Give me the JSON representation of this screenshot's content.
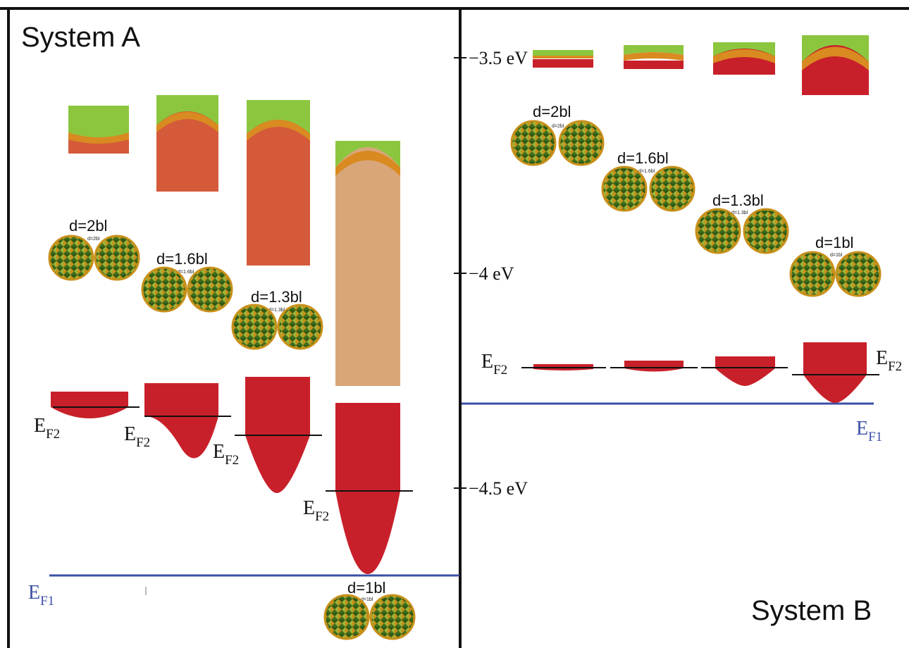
{
  "system_a": {
    "title": "System A",
    "panels": [
      {
        "d_label": "d=2bl",
        "inset_label": "d=2bl"
      },
      {
        "d_label": "d=1.6bl",
        "inset_label": "d=1.6bl"
      },
      {
        "d_label": "d=1.3bl",
        "inset_label": "d=1.3bl"
      },
      {
        "d_label": "d=1bl",
        "inset_label": "d=1bl"
      }
    ]
  },
  "system_b": {
    "title": "System B",
    "panels": [
      {
        "d_label": "d=2bl",
        "inset_label": "d=2bl"
      },
      {
        "d_label": "d=1.6bl",
        "inset_label": "d=1.6bl"
      },
      {
        "d_label": "d=1.3bl",
        "inset_label": "d=1.3bl"
      },
      {
        "d_label": "d=1bl",
        "inset_label": "d=1bl"
      }
    ]
  },
  "energy_axis": {
    "ticks": [
      "−3.5 eV",
      "−4 eV",
      "−4.5 eV"
    ]
  },
  "fermi": {
    "ef2_main": "E",
    "ef2_sub": "F2",
    "ef1_main": "E",
    "ef1_sub": "F1"
  },
  "colors": {
    "ef1_line": "#3b4fa6",
    "ef2_line": "#111111",
    "band_red": "#c8202a",
    "band_orange": "#d98a20",
    "band_green": "#8cc63f",
    "np_green": "#3f6e1c",
    "np_gold": "#c8901a"
  }
}
